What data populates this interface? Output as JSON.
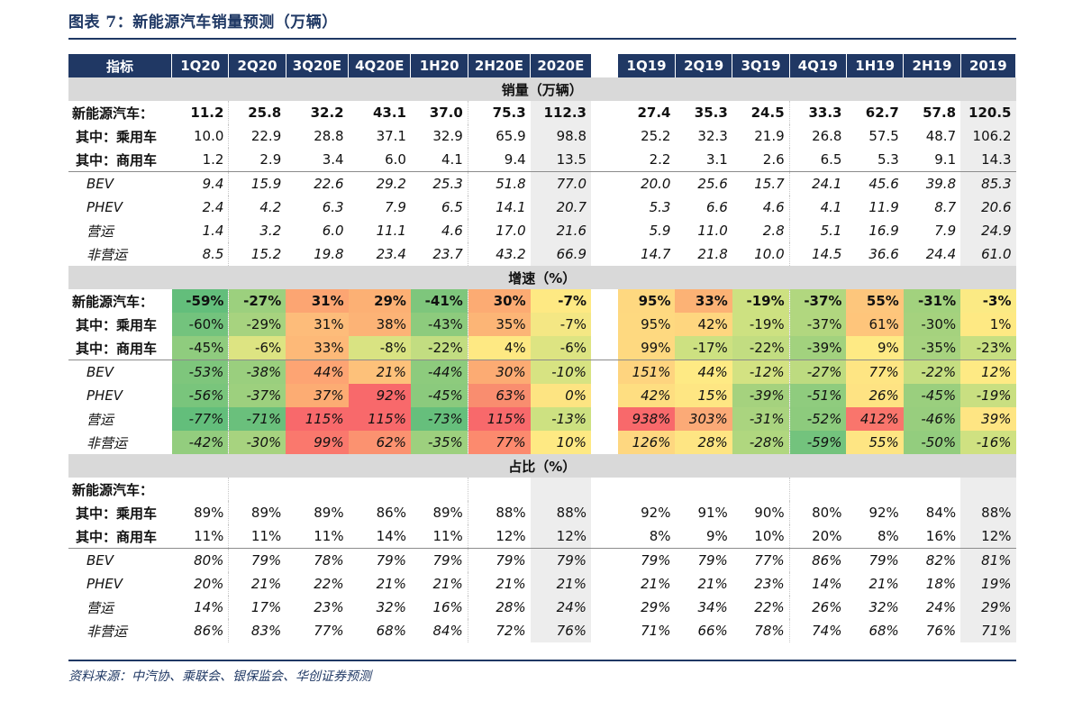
{
  "title": "图表 7：新能源汽车销量预测（万辆）",
  "source": "资料来源：中汽协、乘联会、银保监会、华创证券预测",
  "header": [
    "指标",
    "1Q20",
    "2Q20",
    "3Q20E",
    "4Q20E",
    "1H20",
    "2H20E",
    "2020E",
    "",
    "1Q19",
    "2Q19",
    "3Q19",
    "4Q19",
    "1H19",
    "2H19",
    "2019"
  ],
  "sections": [
    {
      "title": "销量（万辆）",
      "rows": [
        {
          "label": "新能源汽车：",
          "style": "bold",
          "values": [
            "11.2",
            "25.8",
            "32.2",
            "43.1",
            "37.0",
            "75.3",
            "112.3",
            "27.4",
            "35.3",
            "24.5",
            "33.3",
            "62.7",
            "57.8",
            "120.5"
          ]
        },
        {
          "label": "其中：乘用车",
          "style": "sub",
          "values": [
            "10.0",
            "22.9",
            "28.8",
            "37.1",
            "32.9",
            "65.9",
            "98.8",
            "25.2",
            "32.3",
            "21.9",
            "26.8",
            "57.5",
            "48.7",
            "106.2"
          ]
        },
        {
          "label": "其中：商用车",
          "style": "sub",
          "values": [
            "1.2",
            "2.9",
            "3.4",
            "6.0",
            "4.1",
            "9.4",
            "13.5",
            "2.2",
            "3.1",
            "2.6",
            "6.5",
            "5.3",
            "9.1",
            "14.3"
          ]
        },
        {
          "label": "BEV",
          "style": "it",
          "divider": true,
          "values": [
            "9.4",
            "15.9",
            "22.6",
            "29.2",
            "25.3",
            "51.8",
            "77.0",
            "20.0",
            "25.6",
            "15.7",
            "24.1",
            "45.6",
            "39.8",
            "85.3"
          ]
        },
        {
          "label": "PHEV",
          "style": "it",
          "values": [
            "2.4",
            "4.2",
            "6.3",
            "7.9",
            "6.5",
            "14.1",
            "20.7",
            "5.3",
            "6.6",
            "4.6",
            "4.1",
            "11.9",
            "8.7",
            "20.6"
          ]
        },
        {
          "label": "营运",
          "style": "it",
          "values": [
            "1.4",
            "3.2",
            "6.0",
            "11.1",
            "4.6",
            "17.0",
            "21.6",
            "5.9",
            "11.0",
            "2.8",
            "5.1",
            "16.9",
            "7.9",
            "24.9"
          ]
        },
        {
          "label": "非营运",
          "style": "it",
          "values": [
            "8.5",
            "15.2",
            "19.8",
            "23.4",
            "23.7",
            "43.2",
            "66.9",
            "14.7",
            "21.8",
            "10.0",
            "14.5",
            "36.6",
            "24.4",
            "61.0"
          ]
        }
      ]
    },
    {
      "title": "增速（%）",
      "colored": true,
      "rows": [
        {
          "label": "新能源汽车：",
          "style": "bold",
          "values": [
            "-59%",
            "-27%",
            "31%",
            "29%",
            "-41%",
            "30%",
            "-7%",
            "95%",
            "33%",
            "-19%",
            "-37%",
            "55%",
            "-31%",
            "-3%"
          ],
          "colors": [
            "#63be7b",
            "#9cd07e",
            "#fca572",
            "#fcb074",
            "#7ec67c",
            "#fcab73",
            "#fee983",
            "#fed880",
            "#fcb275",
            "#cde181",
            "#b1d77f",
            "#fdc67c",
            "#a2d27e",
            "#fbea84"
          ]
        },
        {
          "label": "其中：乘用车",
          "style": "sub",
          "values": [
            "-60%",
            "-29%",
            "31%",
            "38%",
            "-43%",
            "35%",
            "-7%",
            "95%",
            "42%",
            "-19%",
            "-37%",
            "61%",
            "-30%",
            "1%"
          ],
          "colors": [
            "#73c37d",
            "#a7d37f",
            "#fdbc7a",
            "#fcb376",
            "#8dcb7d",
            "#fcb576",
            "#f4e784",
            "#fed980",
            "#fed67f",
            "#cde181",
            "#b1d77f",
            "#fec57b",
            "#a5d27e",
            "#fee983"
          ]
        },
        {
          "label": "其中：商用车",
          "style": "sub",
          "values": [
            "-45%",
            "-6%",
            "33%",
            "-8%",
            "-22%",
            "4%",
            "-6%",
            "99%",
            "-17%",
            "-22%",
            "-39%",
            "9%",
            "-35%",
            "-23%"
          ],
          "colors": [
            "#8fcc7e",
            "#dde482",
            "#fdb978",
            "#d9e382",
            "#c2dd81",
            "#fee983",
            "#dde482",
            "#fed980",
            "#cde181",
            "#c2dd81",
            "#a2d27e",
            "#feea84",
            "#a7d37f",
            "#c7df81"
          ]
        },
        {
          "label": "BEV",
          "style": "it",
          "divider": true,
          "values": [
            "-53%",
            "-38%",
            "44%",
            "21%",
            "-44%",
            "30%",
            "-10%",
            "151%",
            "44%",
            "-12%",
            "-27%",
            "77%",
            "-22%",
            "12%"
          ],
          "colors": [
            "#7ec67c",
            "#9acf7e",
            "#fda473",
            "#fdc17a",
            "#8dcb7d",
            "#fcab73",
            "#d7e382",
            "#fed47f",
            "#feea84",
            "#d3e282",
            "#bddb80",
            "#fee583",
            "#c5de81",
            "#feea84"
          ]
        },
        {
          "label": "PHEV",
          "style": "it",
          "values": [
            "-56%",
            "-37%",
            "37%",
            "92%",
            "-45%",
            "63%",
            "0%",
            "42%",
            "15%",
            "-39%",
            "-51%",
            "26%",
            "-45%",
            "-19%"
          ],
          "colors": [
            "#79c57c",
            "#9dd07e",
            "#fcac73",
            "#f8696b",
            "#8bca7d",
            "#f98d6f",
            "#fde482",
            "#fede81",
            "#fee683",
            "#a5d27e",
            "#8fcc7e",
            "#fee383",
            "#9acf7e",
            "#c9df81"
          ]
        },
        {
          "label": "营运",
          "style": "it",
          "values": [
            "-77%",
            "-71%",
            "115%",
            "115%",
            "-73%",
            "115%",
            "-13%",
            "938%",
            "303%",
            "-31%",
            "-52%",
            "412%",
            "-46%",
            "39%"
          ],
          "colors": [
            "#63be7b",
            "#6ac07c",
            "#f8696b",
            "#f8696b",
            "#66bf7c",
            "#f8696b",
            "#cde181",
            "#f8696b",
            "#fbaa77",
            "#aad47f",
            "#8dcb7d",
            "#f9756c",
            "#98ce7e",
            "#fee583"
          ]
        },
        {
          "label": "非营运",
          "style": "it",
          "values": [
            "-42%",
            "-30%",
            "99%",
            "62%",
            "-35%",
            "77%",
            "10%",
            "126%",
            "28%",
            "-28%",
            "-59%",
            "55%",
            "-50%",
            "-16%"
          ],
          "colors": [
            "#93cd7e",
            "#a7d37f",
            "#fa786d",
            "#fb9270",
            "#9dd07e",
            "#fc8a6e",
            "#fee983",
            "#fed780",
            "#fee583",
            "#b0d77f",
            "#73c37d",
            "#fee583",
            "#93cd7e",
            "#cfe181"
          ]
        }
      ]
    },
    {
      "title": "占比（%）",
      "rows": [
        {
          "label": "新能源汽车：",
          "style": "bold",
          "values": [
            "",
            "",
            "",
            "",
            "",
            "",
            "",
            "",
            "",
            "",
            "",
            "",
            "",
            ""
          ]
        },
        {
          "label": "其中：乘用车",
          "style": "sub",
          "values": [
            "89%",
            "89%",
            "89%",
            "86%",
            "89%",
            "88%",
            "88%",
            "92%",
            "91%",
            "90%",
            "80%",
            "92%",
            "84%",
            "88%"
          ]
        },
        {
          "label": "其中：商用车",
          "style": "sub",
          "values": [
            "11%",
            "11%",
            "11%",
            "14%",
            "11%",
            "12%",
            "12%",
            "8%",
            "9%",
            "10%",
            "20%",
            "8%",
            "16%",
            "12%"
          ]
        },
        {
          "label": "BEV",
          "style": "it",
          "divider": true,
          "values": [
            "80%",
            "79%",
            "78%",
            "79%",
            "79%",
            "79%",
            "79%",
            "79%",
            "79%",
            "77%",
            "86%",
            "79%",
            "82%",
            "81%"
          ]
        },
        {
          "label": "PHEV",
          "style": "it",
          "values": [
            "20%",
            "21%",
            "22%",
            "21%",
            "21%",
            "21%",
            "21%",
            "21%",
            "21%",
            "23%",
            "14%",
            "21%",
            "18%",
            "19%"
          ]
        },
        {
          "label": "营运",
          "style": "it",
          "values": [
            "14%",
            "17%",
            "23%",
            "32%",
            "16%",
            "28%",
            "24%",
            "29%",
            "34%",
            "22%",
            "26%",
            "32%",
            "24%",
            "29%"
          ]
        },
        {
          "label": "非营运",
          "style": "it",
          "values": [
            "86%",
            "83%",
            "77%",
            "68%",
            "84%",
            "72%",
            "76%",
            "71%",
            "66%",
            "78%",
            "74%",
            "68%",
            "76%",
            "71%"
          ]
        }
      ]
    }
  ]
}
